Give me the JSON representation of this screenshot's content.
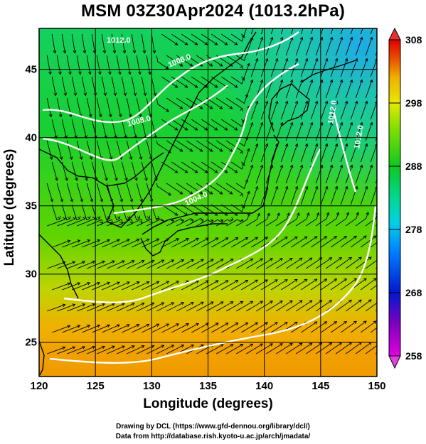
{
  "title": "MSM 03Z30Apr2024 (1013.2hPa)",
  "map": {
    "x_axis": {
      "label": "Longitude (degrees)",
      "min": 120,
      "max": 150,
      "ticks": [
        {
          "value": 120,
          "label": "120"
        },
        {
          "value": 125,
          "label": "125"
        },
        {
          "value": 130,
          "label": "130"
        },
        {
          "value": 135,
          "label": "135"
        },
        {
          "value": 140,
          "label": "140"
        },
        {
          "value": 145,
          "label": "145"
        },
        {
          "value": 150,
          "label": "150"
        }
      ]
    },
    "y_axis": {
      "label": "Latitude  (degrees)",
      "min": 22.5,
      "max": 48,
      "ticks": [
        {
          "value": 25,
          "label": "25"
        },
        {
          "value": 30,
          "label": "30"
        },
        {
          "value": 35,
          "label": "35"
        },
        {
          "value": 40,
          "label": "40"
        },
        {
          "value": 45,
          "label": "45"
        }
      ]
    },
    "field_description": "temperature shading with streamlines and white sea-level pressure contours",
    "pressure_contour_labels": [
      "1008.0",
      "1008.0",
      "1004.0",
      "1012.0",
      "1012.0",
      "1012.0"
    ],
    "grid": true
  },
  "colorbar": {
    "min": 258,
    "max": 308,
    "ticks": [
      {
        "value": 308,
        "label": "308"
      },
      {
        "value": 298,
        "label": "298"
      },
      {
        "value": 288,
        "label": "288"
      },
      {
        "value": 278,
        "label": "278"
      },
      {
        "value": 268,
        "label": "268"
      },
      {
        "value": 258,
        "label": "258"
      }
    ],
    "colors": [
      "#e800e8",
      "#8800c8",
      "#0020d8",
      "#0070ff",
      "#00c8e8",
      "#00d890",
      "#00c830",
      "#58e000",
      "#c8e800",
      "#f0d800",
      "#f0a000",
      "#e85000",
      "#e80000"
    ]
  },
  "credits": {
    "line1": "Drawing by DCL (https://www.gfd-dennou.org/library/dcl/)",
    "line2": "Data from http://database.rish.kyoto-u.ac.jp/arch/jmadata/"
  }
}
